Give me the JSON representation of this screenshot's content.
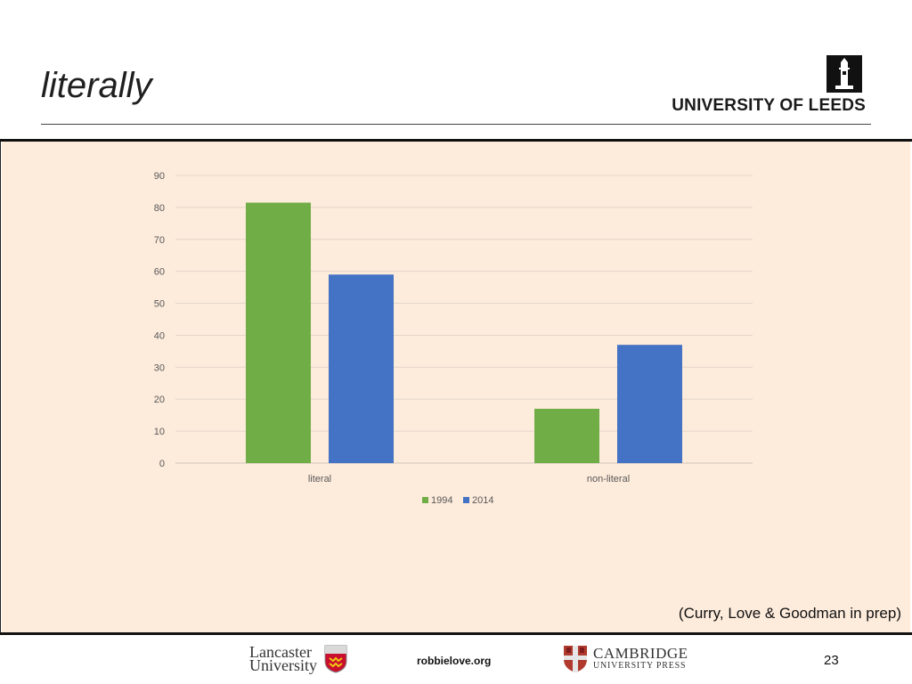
{
  "slide": {
    "title": "literally",
    "citation": "(Curry, Love & Goodman in prep)",
    "page_number": "23",
    "website": "robbielove.org",
    "header_logo": {
      "text": "UNIVERSITY OF LEEDS",
      "icon": "leeds-parkinson-tower-icon"
    },
    "footer_logos": {
      "lancaster": {
        "line1": "Lancaster",
        "line2": "University",
        "icon": "lancaster-crest-icon"
      },
      "cambridge": {
        "line1": "CAMBRIDGE",
        "line2": "UNIVERSITY PRESS",
        "icon": "cambridge-crest-icon"
      }
    },
    "colors": {
      "content_bg": "#fdebdb",
      "series_1994": "#70ad47",
      "series_2014": "#4472c4"
    }
  },
  "chart_data": {
    "type": "bar",
    "categories": [
      "literal",
      "non-literal"
    ],
    "series": [
      {
        "name": "1994",
        "values": [
          81.5,
          17
        ],
        "color": "#70ad47"
      },
      {
        "name": "2014",
        "values": [
          59,
          37
        ],
        "color": "#4472c4"
      }
    ],
    "title": "",
    "xlabel": "",
    "ylabel": "",
    "ylim": [
      0,
      90
    ],
    "yticks": [
      0,
      10,
      20,
      30,
      40,
      50,
      60,
      70,
      80,
      90
    ],
    "grid": true,
    "legend": "bottom"
  }
}
